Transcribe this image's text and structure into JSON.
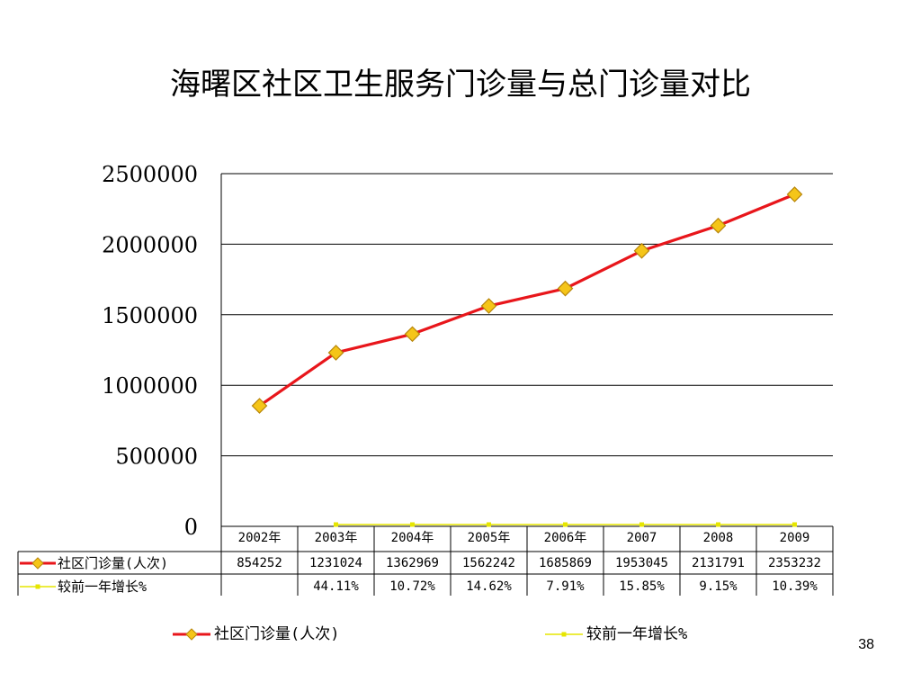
{
  "title": "海曙区社区卫生服务门诊量与总门诊量对比",
  "page_number": "38",
  "colors": {
    "visits_line": "#e8161b",
    "marker_fill": "#f5c518",
    "growth_line": "#e6e600",
    "grid": "#000000"
  },
  "chart_data": {
    "type": "line",
    "title": "海曙区社区卫生服务门诊量与总门诊量对比",
    "categories": [
      "2002年",
      "2003年",
      "2004年",
      "2005年",
      "2006年",
      "2007",
      "2008",
      "2009"
    ],
    "y_ticks": [
      "2500000",
      "2000000",
      "1500000",
      "1000000",
      "500000",
      "0"
    ],
    "ylim": [
      0,
      2500000
    ],
    "grid": true,
    "legend_position": "bottom",
    "series": [
      {
        "name": "社区门诊量(人次)",
        "values": [
          854252,
          1231024,
          1362969,
          1562242,
          1685869,
          1953045,
          2131791,
          2353232
        ],
        "labels": [
          "854252",
          "1231024",
          "1362969",
          "1562242",
          "1685869",
          "1953045",
          "2131791",
          "2353232"
        ]
      },
      {
        "name": "较前一年增长%",
        "values": [
          null,
          44.11,
          10.72,
          14.62,
          7.91,
          15.85,
          9.15,
          10.39
        ],
        "labels": [
          "",
          "44.11%",
          "10.72%",
          "14.62%",
          "7.91%",
          "15.85%",
          "9.15%",
          "10.39%"
        ]
      }
    ]
  }
}
